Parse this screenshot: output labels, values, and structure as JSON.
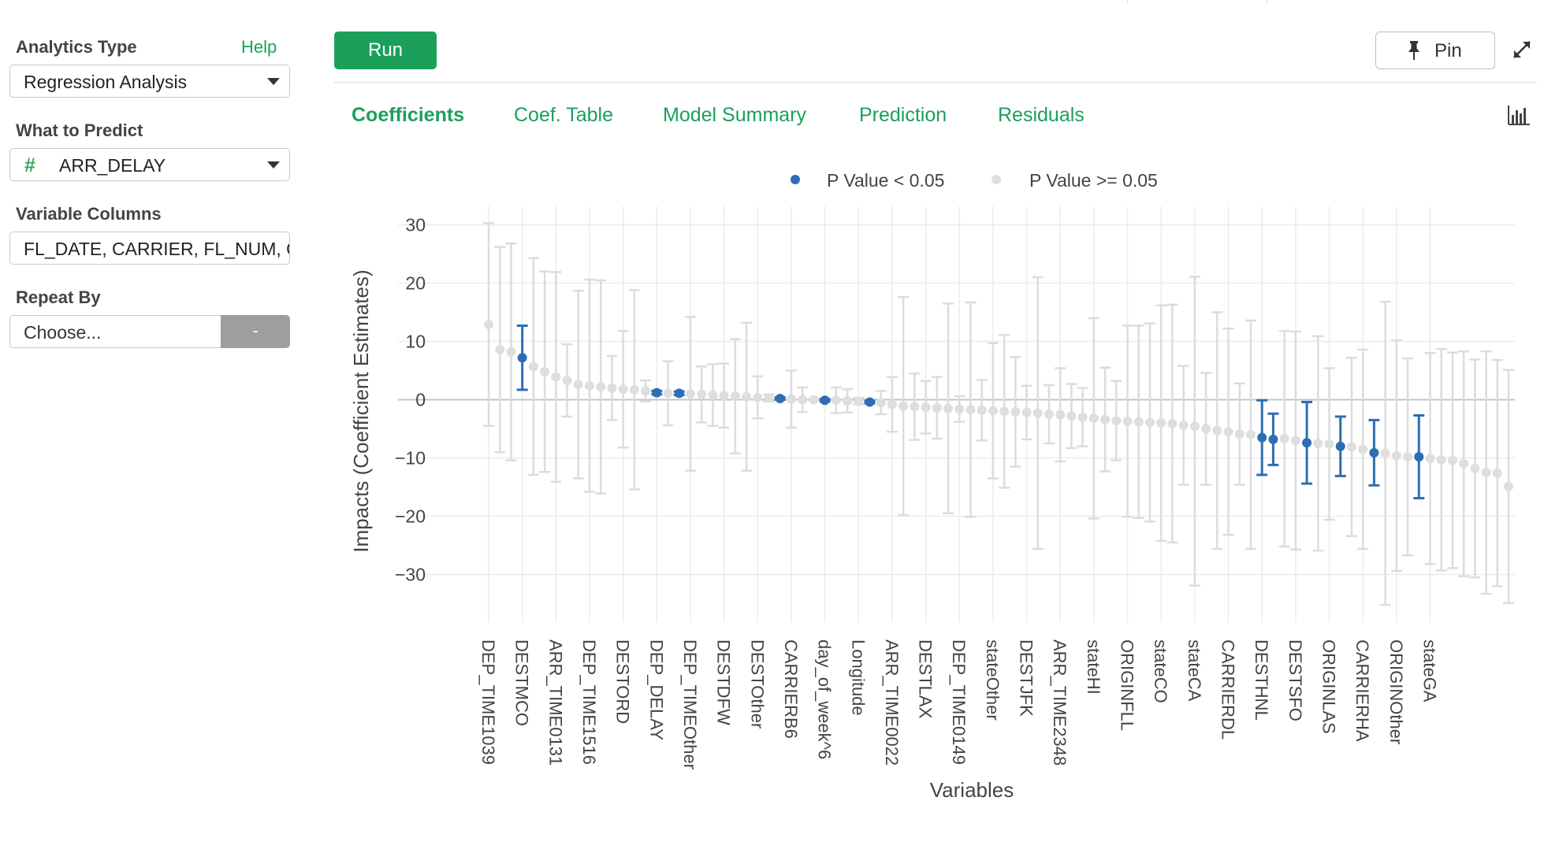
{
  "sidebar": {
    "analytics_type_label": "Analytics Type",
    "help_link": "Help",
    "analytics_type_value": "Regression Analysis",
    "what_to_predict_label": "What to Predict",
    "what_to_predict_value": "ARR_DELAY",
    "what_to_predict_icon": "hash-icon",
    "variable_columns_label": "Variable Columns",
    "variable_columns_value": "FL_DATE, CARRIER, FL_NUM, ORIGIN",
    "repeat_by_label": "Repeat By",
    "repeat_by_placeholder": "Choose...",
    "repeat_by_button": "-"
  },
  "toolbar": {
    "run_label": "Run",
    "pin_label": "Pin",
    "pin_icon": "pin-icon",
    "expand_icon": "expand-icon",
    "chart_type_icon": "bar-chart-icon"
  },
  "tabs": [
    {
      "label": "Coefficients",
      "active": true
    },
    {
      "label": "Coef. Table",
      "active": false
    },
    {
      "label": "Model Summary",
      "active": false
    },
    {
      "label": "Prediction",
      "active": false
    },
    {
      "label": "Residuals",
      "active": false
    }
  ],
  "colors": {
    "accent": "#1aa05b",
    "significant": "#2e6db4",
    "not_significant": "#d5d5d5"
  },
  "chart_data": {
    "type": "scatter",
    "xlabel": "Variables",
    "ylabel": "Impacts (Coefficient Estimates)",
    "ylim": [
      -38,
      33
    ],
    "yticks": [
      30,
      20,
      10,
      0,
      -10,
      -20,
      -30
    ],
    "ytick_labels": [
      "30",
      "20",
      "10",
      "0",
      "−10",
      "−20",
      "−30"
    ],
    "grid": true,
    "legend": {
      "placement": "top",
      "entries": [
        {
          "label": "P Value < 0.05",
          "color": "#2e6db4"
        },
        {
          "label": "P Value >= 0.05",
          "color": "#d5d5d5"
        }
      ]
    },
    "x_tick_labels": [
      "DEP_TIME1039",
      "DESTMCO",
      "ARR_TIME0131",
      "DEP_TIME1516",
      "DESTORD",
      "DEP_DELAY",
      "DEP_TIMEOther",
      "DESTDFW",
      "DESTOther",
      "CARRIERB6",
      "day_of_week^6",
      "Longitude",
      "ARR_TIME0022",
      "DESTLAX",
      "DEP_TIME0149",
      "stateOther",
      "DESTJFK",
      "ARR_TIME2348",
      "stateHI",
      "ORIGINFLL",
      "stateCO",
      "stateCA",
      "CARRIERDL",
      "DESTHNL",
      "DESTSFO",
      "ORIGINLAS",
      "CARRIERHA",
      "ORIGINOther",
      "stateGA"
    ],
    "points": [
      {
        "i": 0,
        "y": 12.9,
        "lo": -4.5,
        "hi": 30.3,
        "sig": false
      },
      {
        "i": 1,
        "y": 8.6,
        "lo": -9.0,
        "hi": 26.2,
        "sig": false
      },
      {
        "i": 2,
        "y": 8.2,
        "lo": -10.4,
        "hi": 26.8,
        "sig": false
      },
      {
        "i": 3,
        "y": 7.2,
        "lo": 1.7,
        "hi": 12.7,
        "sig": true
      },
      {
        "i": 4,
        "y": 5.7,
        "lo": -12.9,
        "hi": 24.3,
        "sig": false
      },
      {
        "i": 5,
        "y": 4.8,
        "lo": -12.4,
        "hi": 22.0,
        "sig": false
      },
      {
        "i": 6,
        "y": 3.9,
        "lo": -14.1,
        "hi": 21.9,
        "sig": false
      },
      {
        "i": 7,
        "y": 3.3,
        "lo": -2.9,
        "hi": 9.5,
        "sig": false
      },
      {
        "i": 8,
        "y": 2.6,
        "lo": -13.5,
        "hi": 18.7,
        "sig": false
      },
      {
        "i": 9,
        "y": 2.4,
        "lo": -15.8,
        "hi": 20.6,
        "sig": false
      },
      {
        "i": 10,
        "y": 2.2,
        "lo": -16.1,
        "hi": 20.5,
        "sig": false
      },
      {
        "i": 11,
        "y": 2.0,
        "lo": -3.5,
        "hi": 7.5,
        "sig": false
      },
      {
        "i": 12,
        "y": 1.8,
        "lo": -8.2,
        "hi": 11.8,
        "sig": false
      },
      {
        "i": 13,
        "y": 1.7,
        "lo": -15.4,
        "hi": 18.8,
        "sig": false
      },
      {
        "i": 14,
        "y": 1.5,
        "lo": -0.3,
        "hi": 3.3,
        "sig": false
      },
      {
        "i": 15,
        "y": 1.2,
        "lo": 0.9,
        "hi": 1.5,
        "sig": true
      },
      {
        "i": 16,
        "y": 1.1,
        "lo": -4.4,
        "hi": 6.6,
        "sig": false
      },
      {
        "i": 17,
        "y": 1.1,
        "lo": 0.8,
        "hi": 1.4,
        "sig": true
      },
      {
        "i": 18,
        "y": 1.0,
        "lo": -12.2,
        "hi": 14.2,
        "sig": false
      },
      {
        "i": 19,
        "y": 0.9,
        "lo": -3.9,
        "hi": 5.7,
        "sig": false
      },
      {
        "i": 20,
        "y": 0.8,
        "lo": -4.5,
        "hi": 6.1,
        "sig": false
      },
      {
        "i": 21,
        "y": 0.7,
        "lo": -4.8,
        "hi": 6.2,
        "sig": false
      },
      {
        "i": 22,
        "y": 0.6,
        "lo": -9.2,
        "hi": 10.4,
        "sig": false
      },
      {
        "i": 23,
        "y": 0.5,
        "lo": -12.2,
        "hi": 13.2,
        "sig": false
      },
      {
        "i": 24,
        "y": 0.4,
        "lo": -3.2,
        "hi": 4.0,
        "sig": false
      },
      {
        "i": 25,
        "y": 0.3,
        "lo": -0.3,
        "hi": 0.9,
        "sig": false
      },
      {
        "i": 26,
        "y": 0.2,
        "lo": 0.0,
        "hi": 0.4,
        "sig": true
      },
      {
        "i": 27,
        "y": 0.1,
        "lo": -4.8,
        "hi": 5.0,
        "sig": false
      },
      {
        "i": 28,
        "y": 0.0,
        "lo": -2.1,
        "hi": 2.1,
        "sig": false
      },
      {
        "i": 29,
        "y": 0.0,
        "lo": -0.1,
        "hi": 0.1,
        "sig": false
      },
      {
        "i": 30,
        "y": -0.1,
        "lo": -0.3,
        "hi": 0.1,
        "sig": true
      },
      {
        "i": 31,
        "y": -0.1,
        "lo": -2.3,
        "hi": 2.1,
        "sig": false
      },
      {
        "i": 32,
        "y": -0.2,
        "lo": -2.2,
        "hi": 1.8,
        "sig": false
      },
      {
        "i": 33,
        "y": -0.3,
        "lo": -0.8,
        "hi": 0.3,
        "sig": false
      },
      {
        "i": 34,
        "y": -0.4,
        "lo": -0.6,
        "hi": -0.2,
        "sig": true
      },
      {
        "i": 35,
        "y": -0.5,
        "lo": -2.5,
        "hi": 1.5,
        "sig": false
      },
      {
        "i": 36,
        "y": -0.8,
        "lo": -5.5,
        "hi": 3.9,
        "sig": false
      },
      {
        "i": 37,
        "y": -1.1,
        "lo": -19.8,
        "hi": 17.6,
        "sig": false
      },
      {
        "i": 38,
        "y": -1.2,
        "lo": -6.9,
        "hi": 4.5,
        "sig": false
      },
      {
        "i": 39,
        "y": -1.3,
        "lo": -5.8,
        "hi": 3.2,
        "sig": false
      },
      {
        "i": 40,
        "y": -1.4,
        "lo": -6.7,
        "hi": 3.9,
        "sig": false
      },
      {
        "i": 41,
        "y": -1.5,
        "lo": -19.5,
        "hi": 16.5,
        "sig": false
      },
      {
        "i": 42,
        "y": -1.6,
        "lo": -3.8,
        "hi": 0.6,
        "sig": false
      },
      {
        "i": 43,
        "y": -1.7,
        "lo": -20.1,
        "hi": 16.7,
        "sig": false
      },
      {
        "i": 44,
        "y": -1.8,
        "lo": -7.0,
        "hi": 3.4,
        "sig": false
      },
      {
        "i": 45,
        "y": -1.9,
        "lo": -13.5,
        "hi": 9.7,
        "sig": false
      },
      {
        "i": 46,
        "y": -2.0,
        "lo": -15.1,
        "hi": 11.1,
        "sig": false
      },
      {
        "i": 47,
        "y": -2.1,
        "lo": -11.5,
        "hi": 7.3,
        "sig": false
      },
      {
        "i": 48,
        "y": -2.2,
        "lo": -6.8,
        "hi": 2.4,
        "sig": false
      },
      {
        "i": 49,
        "y": -2.3,
        "lo": -25.6,
        "hi": 21.0,
        "sig": false
      },
      {
        "i": 50,
        "y": -2.5,
        "lo": -7.5,
        "hi": 2.5,
        "sig": false
      },
      {
        "i": 51,
        "y": -2.6,
        "lo": -10.6,
        "hi": 5.4,
        "sig": false
      },
      {
        "i": 52,
        "y": -2.8,
        "lo": -8.3,
        "hi": 2.7,
        "sig": false
      },
      {
        "i": 53,
        "y": -3.0,
        "lo": -8.0,
        "hi": 2.0,
        "sig": false
      },
      {
        "i": 54,
        "y": -3.2,
        "lo": -20.4,
        "hi": 14.0,
        "sig": false
      },
      {
        "i": 55,
        "y": -3.4,
        "lo": -12.3,
        "hi": 5.5,
        "sig": false
      },
      {
        "i": 56,
        "y": -3.6,
        "lo": -10.4,
        "hi": 3.2,
        "sig": false
      },
      {
        "i": 57,
        "y": -3.7,
        "lo": -20.1,
        "hi": 12.7,
        "sig": false
      },
      {
        "i": 58,
        "y": -3.8,
        "lo": -20.3,
        "hi": 12.7,
        "sig": false
      },
      {
        "i": 59,
        "y": -3.9,
        "lo": -20.9,
        "hi": 13.1,
        "sig": false
      },
      {
        "i": 60,
        "y": -4.0,
        "lo": -24.2,
        "hi": 16.2,
        "sig": false
      },
      {
        "i": 61,
        "y": -4.1,
        "lo": -24.5,
        "hi": 16.3,
        "sig": false
      },
      {
        "i": 62,
        "y": -4.4,
        "lo": -14.6,
        "hi": 5.8,
        "sig": false
      },
      {
        "i": 63,
        "y": -4.6,
        "lo": -31.9,
        "hi": 21.1,
        "sig": false
      },
      {
        "i": 64,
        "y": -5.0,
        "lo": -14.6,
        "hi": 4.6,
        "sig": false
      },
      {
        "i": 65,
        "y": -5.3,
        "lo": -25.6,
        "hi": 15.0,
        "sig": false
      },
      {
        "i": 66,
        "y": -5.5,
        "lo": -23.2,
        "hi": 12.2,
        "sig": false
      },
      {
        "i": 67,
        "y": -5.9,
        "lo": -14.6,
        "hi": 2.8,
        "sig": false
      },
      {
        "i": 68,
        "y": -6.0,
        "lo": -25.6,
        "hi": 13.6,
        "sig": false
      },
      {
        "i": 69,
        "y": -6.5,
        "lo": -12.9,
        "hi": -0.1,
        "sig": true
      },
      {
        "i": 70,
        "y": -6.8,
        "lo": -11.2,
        "hi": -2.4,
        "sig": true
      },
      {
        "i": 71,
        "y": -6.7,
        "lo": -25.2,
        "hi": 11.8,
        "sig": false
      },
      {
        "i": 72,
        "y": -7.0,
        "lo": -25.7,
        "hi": 11.7,
        "sig": false
      },
      {
        "i": 73,
        "y": -7.4,
        "lo": -14.4,
        "hi": -0.4,
        "sig": true
      },
      {
        "i": 74,
        "y": -7.5,
        "lo": -25.9,
        "hi": 10.9,
        "sig": false
      },
      {
        "i": 75,
        "y": -7.6,
        "lo": -20.6,
        "hi": 5.4,
        "sig": false
      },
      {
        "i": 76,
        "y": -8.0,
        "lo": -13.1,
        "hi": -2.9,
        "sig": true
      },
      {
        "i": 77,
        "y": -8.1,
        "lo": -23.4,
        "hi": 7.2,
        "sig": false
      },
      {
        "i": 78,
        "y": -8.5,
        "lo": -25.6,
        "hi": 8.6,
        "sig": false
      },
      {
        "i": 79,
        "y": -9.1,
        "lo": -14.7,
        "hi": -3.5,
        "sig": true
      },
      {
        "i": 80,
        "y": -9.2,
        "lo": -35.2,
        "hi": 16.8,
        "sig": false
      },
      {
        "i": 81,
        "y": -9.6,
        "lo": -29.4,
        "hi": 10.2,
        "sig": false
      },
      {
        "i": 82,
        "y": -9.8,
        "lo": -26.7,
        "hi": 7.1,
        "sig": false
      },
      {
        "i": 83,
        "y": -9.8,
        "lo": -16.9,
        "hi": -2.7,
        "sig": true
      },
      {
        "i": 84,
        "y": -10.1,
        "lo": -28.2,
        "hi": 8.0,
        "sig": false
      },
      {
        "i": 85,
        "y": -10.3,
        "lo": -29.3,
        "hi": 8.7,
        "sig": false
      },
      {
        "i": 86,
        "y": -10.4,
        "lo": -28.9,
        "hi": 8.1,
        "sig": false
      },
      {
        "i": 87,
        "y": -11.0,
        "lo": -30.3,
        "hi": 8.3,
        "sig": false
      },
      {
        "i": 88,
        "y": -11.8,
        "lo": -30.5,
        "hi": 6.9,
        "sig": false
      },
      {
        "i": 89,
        "y": -12.5,
        "lo": -33.3,
        "hi": 8.3,
        "sig": false
      },
      {
        "i": 90,
        "y": -12.6,
        "lo": -32.0,
        "hi": 6.8,
        "sig": false
      },
      {
        "i": 91,
        "y": -14.9,
        "lo": -34.9,
        "hi": 5.1,
        "sig": false
      }
    ]
  }
}
